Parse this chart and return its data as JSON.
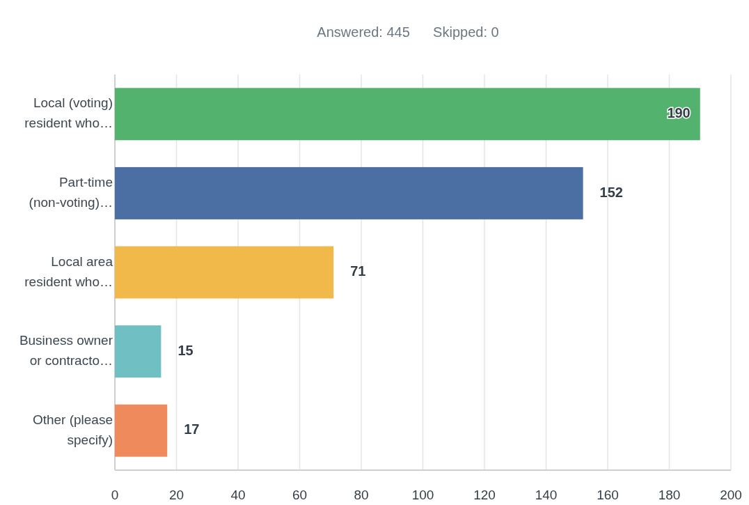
{
  "chart_data": {
    "type": "bar",
    "orientation": "horizontal",
    "subtitle": "Answered: 445      Skipped: 0",
    "categories": [
      "Local (voting) resident who…",
      "Part-time (non-voting)…",
      "Local area resident who…",
      "Business owner or contracto…",
      "Other (please specify)"
    ],
    "values": [
      190,
      152,
      71,
      15,
      17
    ],
    "colors": [
      "#53b36e",
      "#4b6ea3",
      "#f1b84a",
      "#70bfc2",
      "#ee8a5b"
    ],
    "xlim": [
      0,
      200
    ],
    "xticks": [
      0,
      20,
      40,
      60,
      80,
      100,
      120,
      140,
      160,
      180,
      200
    ],
    "grid": "x",
    "data_labels": true
  }
}
